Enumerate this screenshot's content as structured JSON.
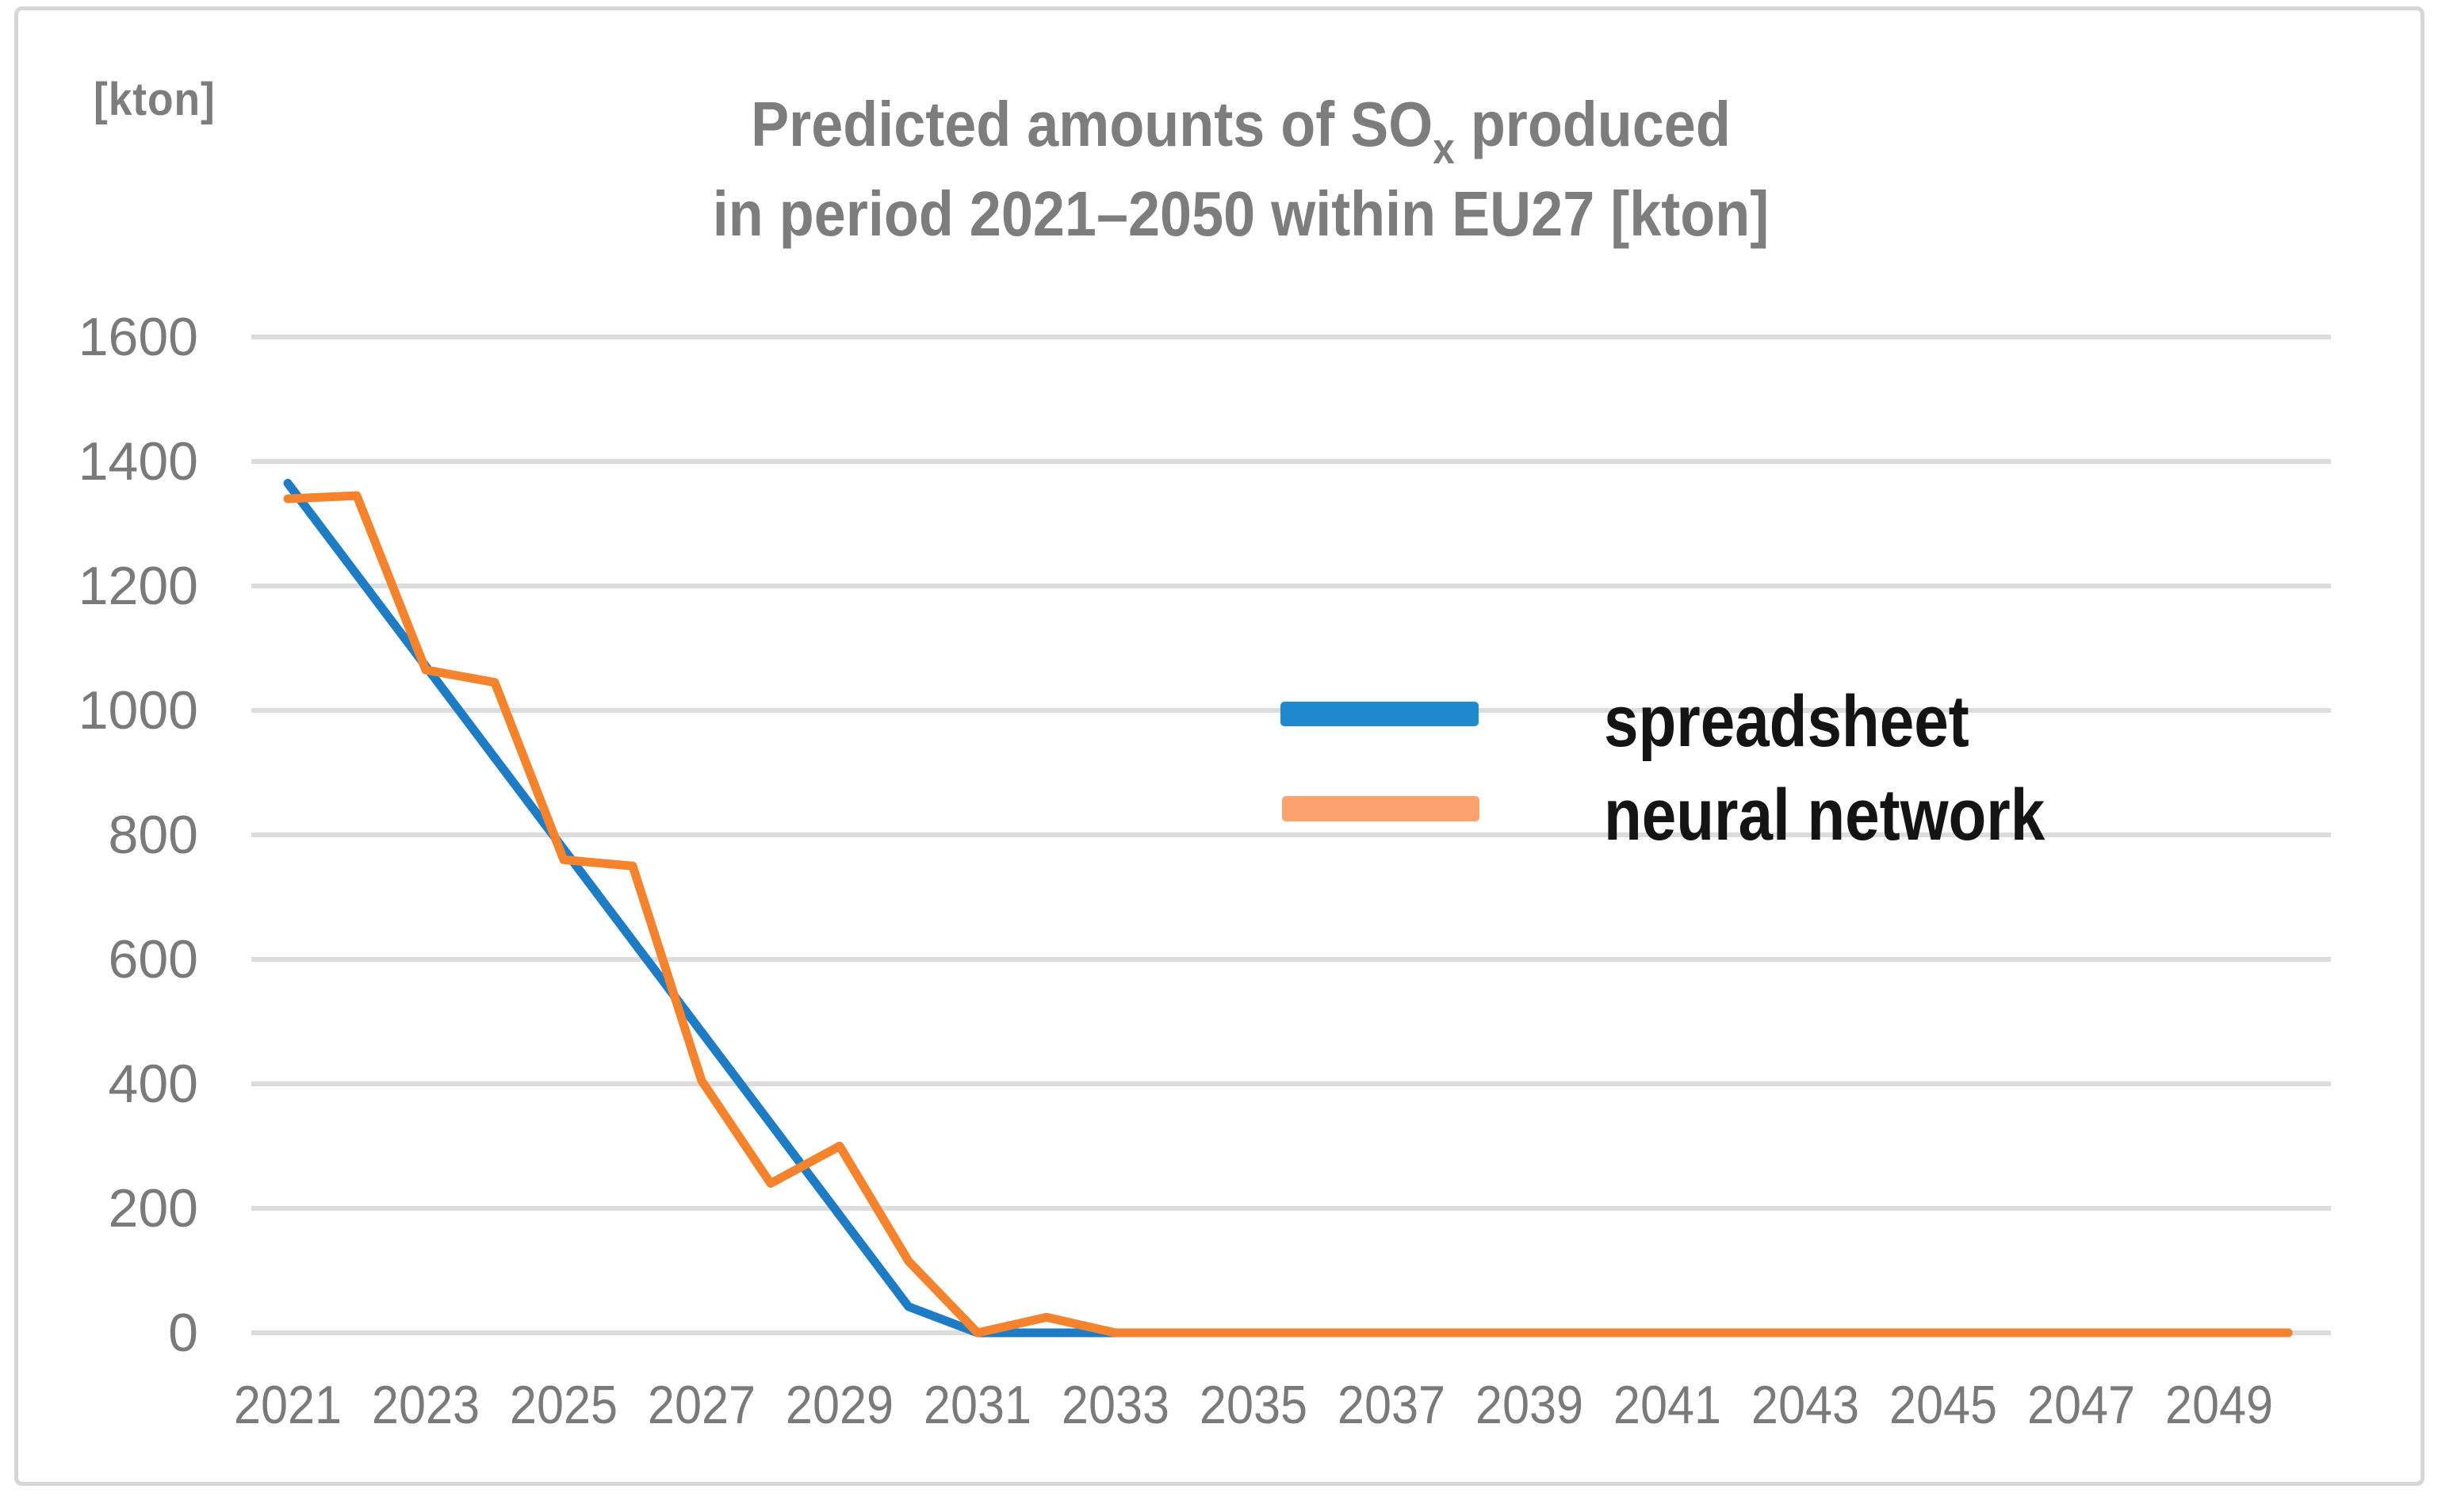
{
  "unit_label": "[kton]",
  "title": {
    "line1_pre": "Predicted amounts of SO",
    "line1_sub": "x",
    "line1_post": " produced",
    "line2": "in period 2021–2050 within EU27 [kton]",
    "color": "#7d7d7d"
  },
  "legend": {
    "position": "center-right",
    "items": [
      {
        "label": "spreadsheet",
        "swatch_color": "#2189ce"
      },
      {
        "label": "neural network",
        "swatch_color": "#fca26e"
      }
    ],
    "text_color": "#141414"
  },
  "axes": {
    "y_ticks": [
      "1600",
      "1400",
      "1200",
      "1000",
      "800",
      "600",
      "400",
      "200",
      "0"
    ],
    "x_ticks": [
      "2021",
      "2023",
      "2025",
      "2027",
      "2029",
      "2031",
      "2033",
      "2035",
      "2037",
      "2039",
      "2041",
      "2043",
      "2045",
      "2047",
      "2049"
    ],
    "tick_color": "#7a7a7a",
    "gridline_color": "#dcdcdc"
  },
  "chart_data": {
    "type": "line",
    "title": "Predicted amounts of SOx produced in period 2021–2050 within EU27 [kton]",
    "ylabel": "[kton]",
    "ylim": [
      0,
      1600
    ],
    "ytick_step": 200,
    "grid": "horizontal-only",
    "legend_position": "center-right",
    "x": [
      2021,
      2022,
      2023,
      2024,
      2025,
      2026,
      2027,
      2028,
      2029,
      2030,
      2031,
      2032,
      2033,
      2034,
      2035,
      2036,
      2037,
      2038,
      2039,
      2040,
      2041,
      2042,
      2043,
      2044,
      2045,
      2046,
      2047,
      2048,
      2049,
      2050
    ],
    "series": [
      {
        "name": "spreadsheet",
        "color": "#1e7cc4",
        "values": [
          1365,
          1218,
          1071,
          924,
          777,
          630,
          483,
          336,
          189,
          42,
          0,
          0,
          0,
          0,
          0,
          0,
          0,
          0,
          0,
          0,
          0,
          0,
          0,
          0,
          0,
          0,
          0,
          0,
          0,
          0
        ]
      },
      {
        "name": "neural network",
        "color": "#f5822c",
        "values": [
          1340,
          1345,
          1065,
          1045,
          760,
          750,
          405,
          240,
          300,
          115,
          0,
          25,
          0,
          0,
          0,
          0,
          0,
          0,
          0,
          0,
          0,
          0,
          0,
          0,
          0,
          0,
          0,
          0,
          0,
          0
        ]
      }
    ]
  }
}
